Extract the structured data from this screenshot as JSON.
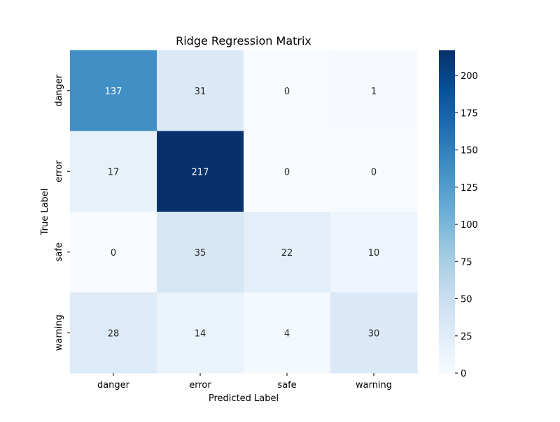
{
  "chart_data": {
    "type": "heatmap",
    "title": "Ridge Regression Matrix",
    "xlabel": "Predicted Label",
    "ylabel": "True Label",
    "x_categories": [
      "danger",
      "error",
      "safe",
      "warning"
    ],
    "y_categories": [
      "danger",
      "error",
      "safe",
      "warning"
    ],
    "values": [
      [
        137,
        31,
        0,
        1
      ],
      [
        17,
        217,
        0,
        0
      ],
      [
        0,
        35,
        22,
        10
      ],
      [
        28,
        14,
        4,
        30
      ]
    ],
    "colormap": "Blues",
    "value_range": [
      0,
      217
    ],
    "colorbar_ticks": [
      0,
      25,
      50,
      75,
      100,
      125,
      150,
      175,
      200
    ],
    "text_color_light": "#ffffff",
    "text_color_dark": "#262626"
  }
}
